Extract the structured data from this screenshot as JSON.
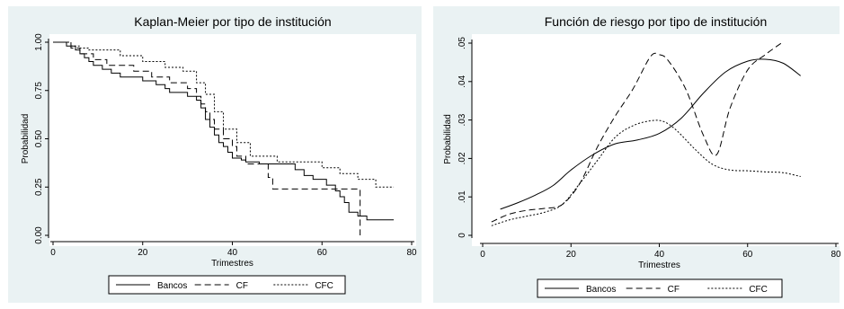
{
  "chart_data": [
    {
      "type": "line",
      "title": "Kaplan-Meier por tipo de institución",
      "xlabel": "Trimestres",
      "ylabel": "Probabilidad",
      "xlim": [
        0,
        80
      ],
      "ylim": [
        0,
        1
      ],
      "xticks": [
        "0",
        "20",
        "40",
        "60",
        "80"
      ],
      "yticks": [
        "0.00",
        "0.25",
        "0.50",
        "0.75",
        "1.00"
      ],
      "grid": false,
      "legend": "bottom",
      "step": true,
      "series": [
        {
          "name": "Bancos",
          "style": "solid",
          "x": [
            0,
            3,
            5,
            6,
            7,
            8,
            9,
            11,
            13,
            15,
            20,
            23,
            25,
            26,
            28,
            30,
            32,
            33,
            34,
            35,
            36,
            37,
            38,
            39,
            40,
            42,
            43,
            46,
            48,
            54,
            56,
            58,
            61,
            63,
            64,
            65,
            66,
            68,
            70,
            76
          ],
          "y": [
            1.0,
            0.98,
            0.96,
            0.94,
            0.92,
            0.9,
            0.88,
            0.86,
            0.84,
            0.82,
            0.8,
            0.78,
            0.76,
            0.74,
            0.74,
            0.72,
            0.7,
            0.66,
            0.6,
            0.56,
            0.52,
            0.48,
            0.46,
            0.43,
            0.4,
            0.39,
            0.38,
            0.37,
            0.37,
            0.34,
            0.31,
            0.29,
            0.26,
            0.23,
            0.2,
            0.17,
            0.12,
            0.1,
            0.08,
            0.08
          ]
        },
        {
          "name": "CF",
          "style": "dashed",
          "x": [
            0,
            4,
            6,
            9,
            12,
            18,
            22,
            26,
            30,
            32,
            33,
            34,
            35,
            36,
            38,
            40,
            41,
            43,
            44,
            48,
            49,
            55,
            68,
            68.5
          ],
          "y": [
            1.0,
            0.97,
            0.94,
            0.91,
            0.88,
            0.85,
            0.82,
            0.79,
            0.76,
            0.72,
            0.68,
            0.64,
            0.6,
            0.55,
            0.5,
            0.46,
            0.41,
            0.37,
            0.37,
            0.3,
            0.24,
            0.24,
            0.24,
            0.0
          ]
        },
        {
          "name": "CFC",
          "style": "dotted",
          "x": [
            0,
            4,
            6,
            8,
            15,
            20,
            25,
            29,
            32,
            34,
            36,
            38,
            41,
            44,
            50,
            55,
            60,
            64,
            68,
            72,
            76
          ],
          "y": [
            1.0,
            0.98,
            0.97,
            0.96,
            0.93,
            0.9,
            0.87,
            0.85,
            0.79,
            0.73,
            0.64,
            0.55,
            0.48,
            0.41,
            0.38,
            0.38,
            0.35,
            0.32,
            0.29,
            0.25,
            0.25
          ]
        }
      ],
      "legend_labels": [
        "Bancos",
        "CF",
        "CFC"
      ]
    },
    {
      "type": "line",
      "title": "Función de riesgo por tipo de institución",
      "xlabel": "Trimestres",
      "ylabel": "Probabilidad",
      "xlim": [
        0,
        80
      ],
      "ylim": [
        0,
        0.05
      ],
      "xticks": [
        "0",
        "20",
        "40",
        "60",
        "80"
      ],
      "yticks": [
        "0",
        ".01",
        ".02",
        ".03",
        ".04",
        ".05"
      ],
      "grid": false,
      "legend": "bottom",
      "step": false,
      "series": [
        {
          "name": "Bancos",
          "style": "solid",
          "x": [
            4,
            8,
            12,
            16,
            20,
            25,
            30,
            35,
            40,
            45,
            50,
            55,
            60,
            64,
            68,
            72
          ],
          "y": [
            0.0068,
            0.0085,
            0.0105,
            0.013,
            0.017,
            0.021,
            0.0238,
            0.0248,
            0.0265,
            0.0305,
            0.037,
            0.0425,
            0.0453,
            0.0458,
            0.0448,
            0.0415
          ]
        },
        {
          "name": "CF",
          "style": "dashed",
          "x": [
            2,
            6,
            10,
            14,
            18,
            22,
            26,
            30,
            34,
            38,
            40,
            42,
            46,
            50,
            53,
            56,
            60,
            64,
            68
          ],
          "y": [
            0.0035,
            0.0055,
            0.0065,
            0.007,
            0.008,
            0.0135,
            0.023,
            0.031,
            0.038,
            0.0465,
            0.047,
            0.0455,
            0.038,
            0.026,
            0.021,
            0.033,
            0.043,
            0.047,
            0.0503
          ]
        },
        {
          "name": "CFC",
          "style": "dotted",
          "x": [
            2,
            6,
            10,
            14,
            18,
            22,
            26,
            30,
            34,
            38,
            41,
            44,
            48,
            52,
            56,
            60,
            64,
            68,
            72
          ],
          "y": [
            0.0025,
            0.004,
            0.005,
            0.006,
            0.008,
            0.0135,
            0.0195,
            0.0255,
            0.0285,
            0.0298,
            0.0296,
            0.0272,
            0.0225,
            0.0185,
            0.017,
            0.0168,
            0.0165,
            0.0163,
            0.0153
          ]
        }
      ],
      "legend_labels": [
        "Bancos",
        "CF",
        "CFC"
      ]
    }
  ]
}
